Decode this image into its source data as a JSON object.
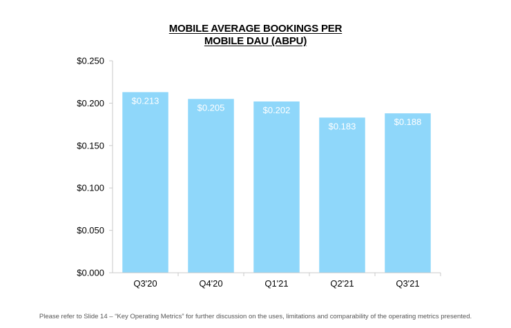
{
  "chart_data": {
    "type": "bar",
    "title_lines": [
      "MOBILE AVERAGE BOOKINGS PER",
      "MOBILE DAU (ABPU)"
    ],
    "categories": [
      "Q3'20",
      "Q4'20",
      "Q1'21",
      "Q2'21",
      "Q3'21"
    ],
    "values": [
      0.213,
      0.205,
      0.202,
      0.183,
      0.188
    ],
    "value_labels": [
      "$0.213",
      "$0.205",
      "$0.202",
      "$0.183",
      "$0.188"
    ],
    "y_ticks": [
      0,
      0.05,
      0.1,
      0.15,
      0.2,
      0.25
    ],
    "y_tick_labels": [
      "$0.000",
      "$0.050",
      "$0.100",
      "$0.150",
      "$0.200",
      "$0.250"
    ],
    "ylim": [
      0,
      0.25
    ],
    "xlabel": "",
    "ylabel": "",
    "grid": false,
    "legend": "none",
    "bar_color": "#8fd7fa",
    "axis_color": "#c9c9c9"
  },
  "footnote": "Please refer to Slide 14 – “Key Operating Metrics” for further discussion on the uses, limitations and comparability of the operating metrics presented."
}
